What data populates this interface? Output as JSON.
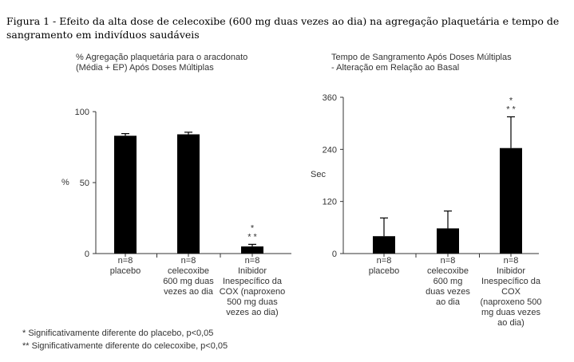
{
  "figure_title": [
    "Figura 1 - Efeito da alta dose de celecoxibe (600 mg duas vezes ao dia) na agregação plaquetária e tempo de",
    "sangramento em indivíduos saudáveis"
  ],
  "footnotes": [
    "* Significativamente diferente do placebo, p<0,05",
    "** Significativamente diferente do celecoxibe, p<0,05"
  ],
  "chart_data": [
    {
      "type": "bar",
      "title_lines": [
        "% Agregação plaquetária para o aracdonato",
        "(Média + EP) Após Doses Múltiplas"
      ],
      "ylabel": "%",
      "ylim": [
        0,
        100
      ],
      "yticks": [
        0,
        50,
        100
      ],
      "bar_color": "#000000",
      "categories": [
        [
          "n=8",
          "placebo"
        ],
        [
          "n=8",
          "celecoxibe",
          "600 mg duas",
          "vezes ao dia"
        ],
        [
          "n=8",
          "Inibidor",
          "Inespecífico da",
          "COX (naproxeno",
          "500 mg duas",
          "vezes ao dia)"
        ]
      ],
      "values": [
        83,
        84,
        5
      ],
      "errors": [
        1.5,
        1.5,
        1.5
      ],
      "annotations": [
        [],
        [],
        [
          "*",
          "* *"
        ]
      ]
    },
    {
      "type": "bar",
      "title_lines": [
        "Tempo de Sangramento Após Doses Múltiplas",
        "- Alteração em Relação ao Basal"
      ],
      "ylabel": "Sec",
      "ylim": [
        0,
        360
      ],
      "yticks": [
        0,
        120,
        240,
        360
      ],
      "bar_color": "#000000",
      "categories": [
        [
          "n=8",
          "placebo"
        ],
        [
          "n=8",
          "celecoxibe",
          "600 mg",
          "duas vezes",
          "ao dia"
        ],
        [
          "n=8",
          "Inibidor",
          "Inespecífico da",
          "COX",
          "(naproxeno 500",
          "mg duas vezes",
          "ao dia)"
        ]
      ],
      "values": [
        40,
        58,
        243
      ],
      "errors": [
        42,
        40,
        72
      ],
      "annotations": [
        [],
        [],
        [
          "*",
          "* *"
        ]
      ]
    }
  ]
}
